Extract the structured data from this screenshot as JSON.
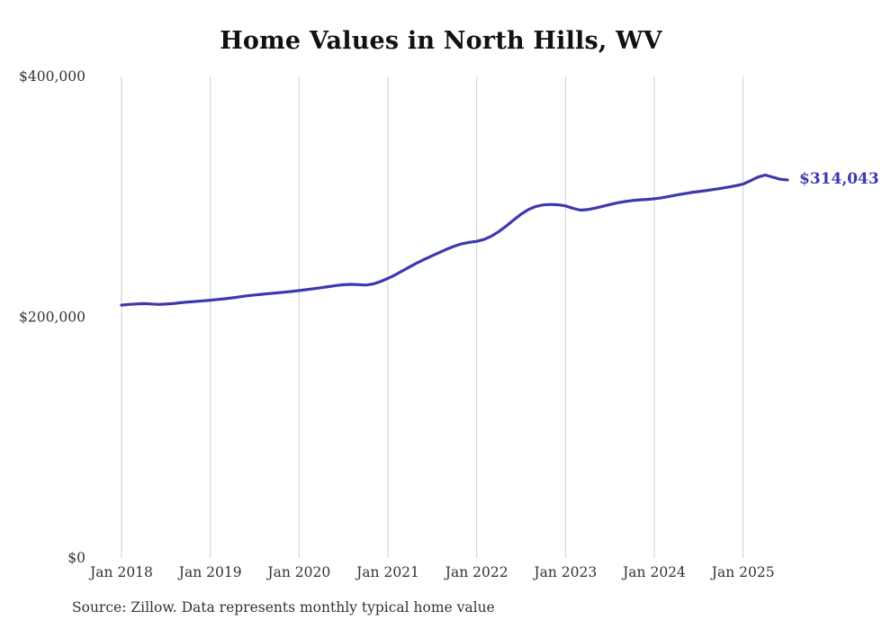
{
  "title": "Home Values in North Hills, WV",
  "end_label": "$314,043",
  "source": "Source: Zillow. Data represents monthly typical home value",
  "colors": {
    "line": "#3e38ae",
    "end_label": "#3e38ae",
    "gridline": "#cfcfcf",
    "tick_text": "#333333"
  },
  "chart_data": {
    "type": "line",
    "title": "Home Values in North Hills, WV",
    "xlabel": "",
    "ylabel": "",
    "ylim": [
      0,
      400000
    ],
    "grid": "vertical-only",
    "legend": "none",
    "series_name": "Typical home value",
    "x_start": "2018-01",
    "x_end": "2025-07",
    "x_ticks": [
      {
        "index": 0,
        "label": "Jan 2018"
      },
      {
        "index": 12,
        "label": "Jan 2019"
      },
      {
        "index": 24,
        "label": "Jan 2020"
      },
      {
        "index": 36,
        "label": "Jan 2021"
      },
      {
        "index": 48,
        "label": "Jan 2022"
      },
      {
        "index": 60,
        "label": "Jan 2023"
      },
      {
        "index": 72,
        "label": "Jan 2024"
      },
      {
        "index": 84,
        "label": "Jan 2025"
      }
    ],
    "y_ticks": [
      {
        "value": 0,
        "label": "$0"
      },
      {
        "value": 200000,
        "label": "$200,000"
      },
      {
        "value": 400000,
        "label": "$400,000"
      }
    ],
    "values": [
      210000,
      210600,
      211000,
      211300,
      211000,
      210600,
      210900,
      211400,
      212000,
      212600,
      213100,
      213600,
      214100,
      214700,
      215300,
      216100,
      217000,
      217800,
      218500,
      219100,
      219700,
      220200,
      220800,
      221400,
      222100,
      222900,
      223700,
      224500,
      225400,
      226300,
      227000,
      227300,
      227100,
      226700,
      227600,
      229600,
      232200,
      235200,
      238600,
      242000,
      245300,
      248300,
      251100,
      253900,
      256700,
      259100,
      261000,
      262200,
      263000,
      264600,
      267400,
      271200,
      275800,
      280800,
      285600,
      289500,
      292000,
      293300,
      293700,
      293400,
      292500,
      290500,
      289000,
      289400,
      290600,
      292100,
      293600,
      295000,
      296100,
      296900,
      297500,
      297900,
      298400,
      299200,
      300300,
      301500,
      302600,
      303600,
      304400,
      305200,
      306100,
      307100,
      308100,
      309200,
      310600,
      313400,
      316400,
      318100,
      316300,
      314600,
      314043
    ],
    "last_value": 314043
  }
}
